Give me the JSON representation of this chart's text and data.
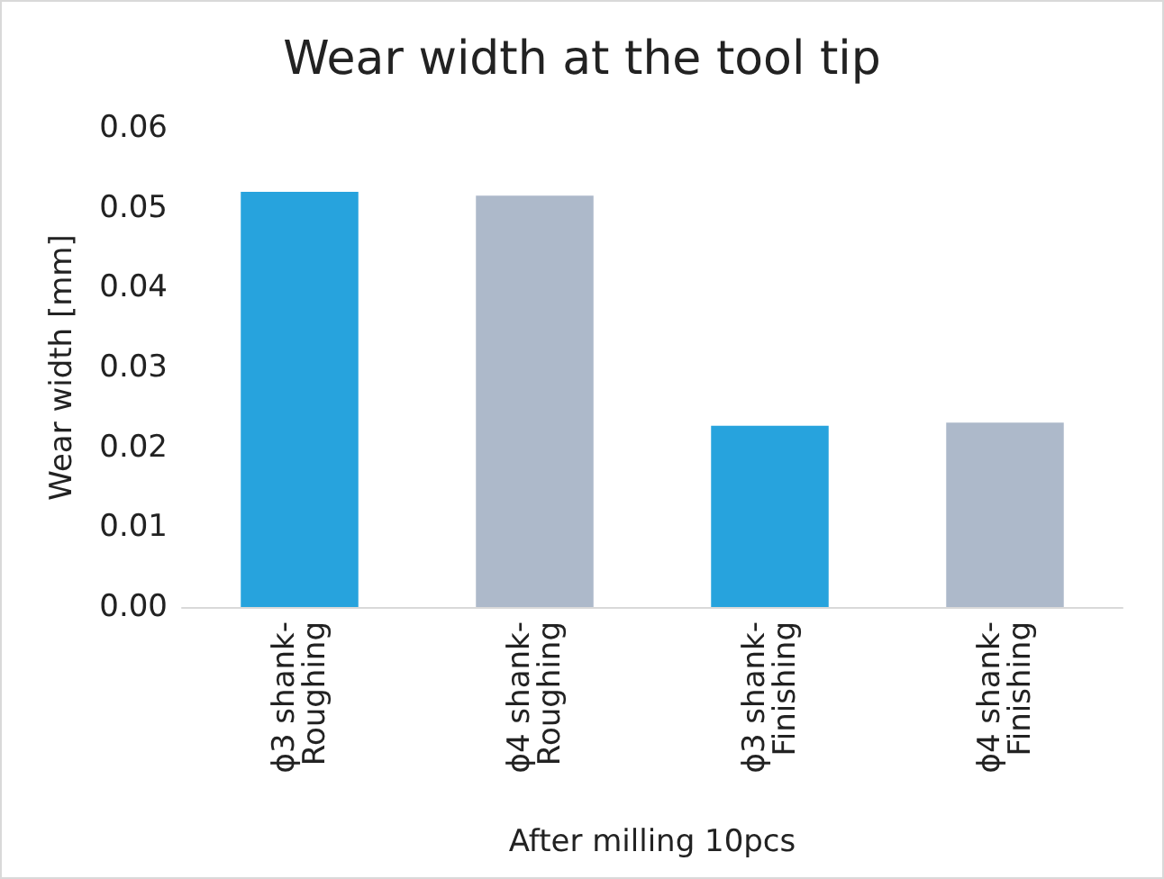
{
  "chart_data": {
    "type": "bar",
    "title": "Wear width at the tool tip",
    "xlabel": "After milling 10pcs",
    "ylabel": "Wear width [mm]",
    "categories": [
      "ϕ3 shank-Roughing",
      "ϕ4 shank-Roughing",
      "ϕ3 shank-Finishing",
      "ϕ4 shank-Finishing"
    ],
    "values": [
      0.052,
      0.0515,
      0.0227,
      0.0231
    ],
    "colors": [
      "#27a3dd",
      "#adb9ca",
      "#27a3dd",
      "#adb9ca"
    ],
    "ylim": [
      0,
      0.06
    ],
    "yticks": [
      {
        "value": 0,
        "label": "0.00"
      },
      0.01,
      0.02,
      0.03,
      0.04,
      0.05,
      0.06
    ],
    "grid": false
  }
}
